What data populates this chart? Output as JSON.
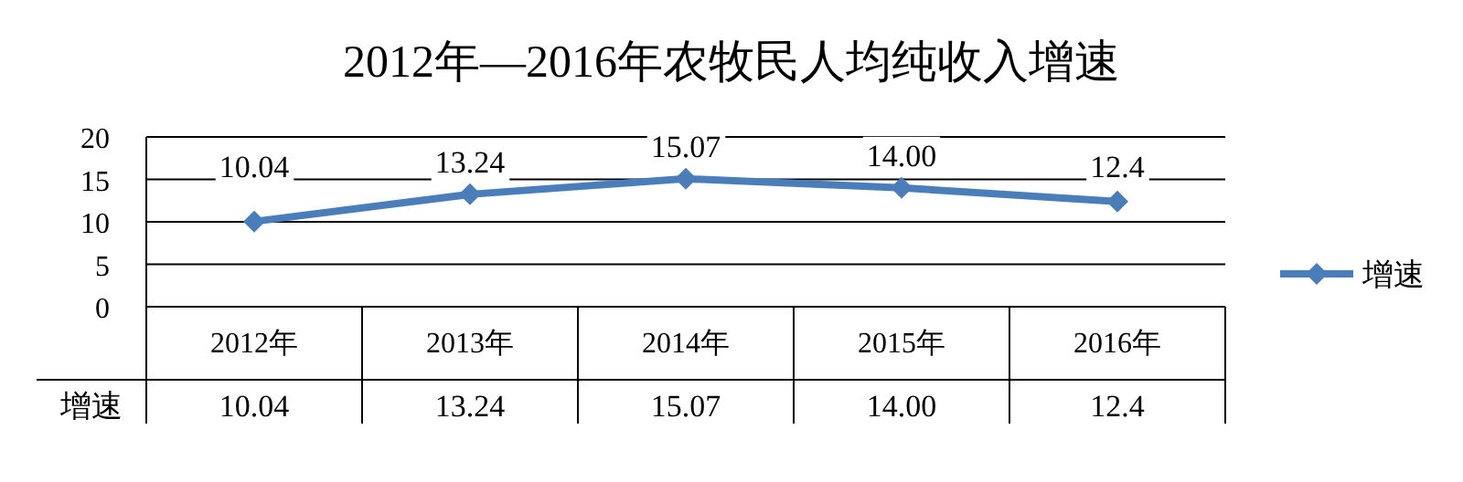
{
  "chart_data": {
    "type": "line",
    "title": "2012年—2016年农牧民人均纯收入增速",
    "categories": [
      "2012年",
      "2013年",
      "2014年",
      "2015年",
      "2016年"
    ],
    "series": [
      {
        "name": "增速",
        "color": "#4a7ebb",
        "values": [
          10.04,
          13.24,
          15.07,
          14.0,
          12.4
        ],
        "value_labels": [
          "10.04",
          "13.24",
          "15.07",
          "14.00",
          "12.4"
        ]
      }
    ],
    "ylim": [
      0,
      20
    ],
    "yticks": [
      0,
      5,
      10,
      15,
      20
    ],
    "grid": "y",
    "legend": "right",
    "marker": "diamond"
  }
}
